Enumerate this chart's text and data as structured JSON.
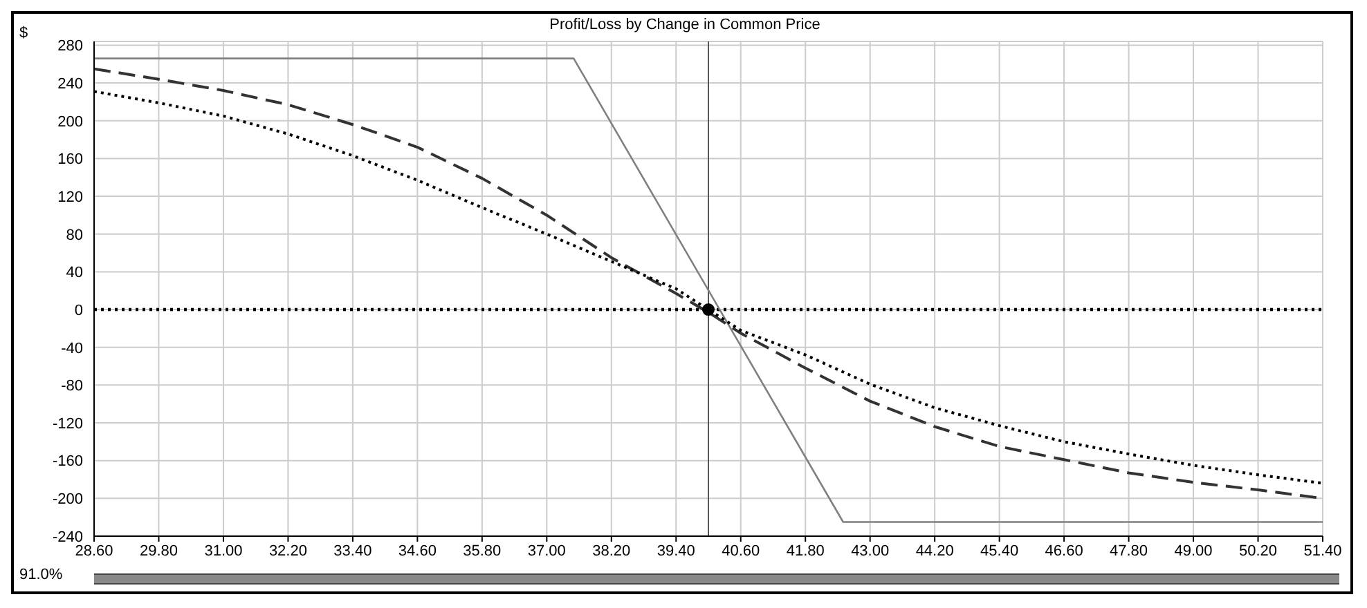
{
  "chart_data": {
    "type": "line",
    "title": "Profit/Loss by Change in Common Price",
    "ylabel": "$",
    "annotations": [
      "91.0%"
    ],
    "xlim": [
      28.6,
      51.4
    ],
    "xticks": [
      {
        "value": 28.6,
        "label": "28.60"
      },
      {
        "value": 29.8,
        "label": "29.80"
      },
      {
        "value": 31,
        "label": "31.00"
      },
      {
        "value": 32.2,
        "label": "32.20"
      },
      {
        "value": 33.4,
        "label": "33.40"
      },
      {
        "value": 34.6,
        "label": "34.60"
      },
      {
        "value": 35.8,
        "label": "35.80"
      },
      {
        "value": 37,
        "label": "37.00"
      },
      {
        "value": 38.2,
        "label": "38.20"
      },
      {
        "value": 39.4,
        "label": "39.40"
      },
      {
        "value": 40.6,
        "label": "40.60"
      },
      {
        "value": 41.8,
        "label": "41.80"
      },
      {
        "value": 43,
        "label": "43.00"
      },
      {
        "value": 44.2,
        "label": "44.20"
      },
      {
        "value": 45.4,
        "label": "45.40"
      },
      {
        "value": 46.6,
        "label": "46.60"
      },
      {
        "value": 47.8,
        "label": "47.80"
      },
      {
        "value": 49,
        "label": "49.00"
      },
      {
        "value": 50.2,
        "label": "50.20"
      },
      {
        "value": 51.4,
        "label": "51.40"
      }
    ],
    "ylim": [
      -240,
      284
    ],
    "yticks": [
      -240,
      -200,
      -160,
      -120,
      -80,
      -40,
      0,
      40,
      80,
      120,
      160,
      200,
      240,
      280
    ],
    "grid": true,
    "marker": "none",
    "ref_lines": [
      {
        "axis": "y",
        "value": 0,
        "color": "#000000",
        "line_style": "dotted"
      },
      {
        "axis": "x",
        "value": 40,
        "color": "#555555",
        "line_style": "solid"
      }
    ],
    "series": [
      {
        "color": "#808080",
        "line_style": "solid",
        "x": [
          28.6,
          37.5,
          42.5,
          51.4
        ],
        "values": [
          266,
          266,
          -225,
          -225
        ]
      },
      {
        "color": "#333333",
        "line_style": "dashed",
        "x": [
          28.6,
          29.8,
          31,
          32.2,
          33.4,
          34.6,
          35.8,
          37,
          38.2,
          39.4,
          40,
          40.6,
          41.8,
          43,
          44.2,
          45.4,
          46.6,
          47.8,
          49,
          50.2,
          51.4
        ],
        "values": [
          255,
          244,
          232,
          217,
          196,
          172,
          139,
          100,
          55,
          17,
          -3,
          -25,
          -62,
          -97,
          -124,
          -145,
          -159,
          -173,
          -183,
          -191,
          -200
        ]
      },
      {
        "color": "#000000",
        "line_style": "dotted",
        "x": [
          28.6,
          29.8,
          31,
          32.2,
          33.4,
          34.6,
          35.8,
          37,
          38.2,
          39.4,
          40,
          40.6,
          41.8,
          43,
          44.2,
          45.4,
          46.6,
          47.8,
          49,
          50.2,
          51.4
        ],
        "values": [
          231,
          219,
          205,
          186,
          163,
          137,
          108,
          80,
          51,
          22,
          0,
          -22,
          -48,
          -79,
          -104,
          -123,
          -140,
          -153,
          -165,
          -175,
          -184
        ]
      },
      {
        "type": "scatter",
        "color": "#000000",
        "marker": "circle",
        "x": [
          40
        ],
        "values": [
          0
        ]
      }
    ]
  }
}
